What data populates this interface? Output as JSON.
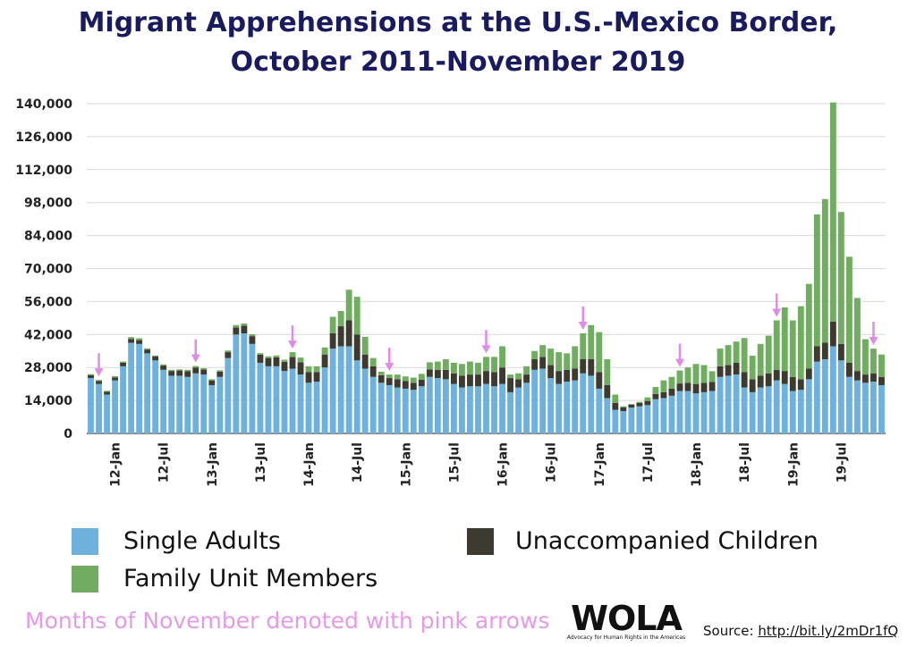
{
  "chart_data": {
    "type": "bar",
    "stacked": true,
    "title_line1": "Migrant Apprehensions at the U.S.-Mexico Border,",
    "title_line2": "October 2011-November 2019",
    "xlabel": "",
    "ylabel": "",
    "ylim": [
      0,
      140000
    ],
    "yticks": [
      0,
      14000,
      28000,
      42000,
      56000,
      70000,
      84000,
      98000,
      112000,
      126000,
      140000
    ],
    "ytick_labels": [
      "0",
      "14,000",
      "28,000",
      "42,000",
      "56,000",
      "70,000",
      "84,000",
      "98,000",
      "112,000",
      "126,000",
      "140,000"
    ],
    "x_tick_labels": [
      {
        "index": 3,
        "label": "12-Jan"
      },
      {
        "index": 9,
        "label": "12-Jul"
      },
      {
        "index": 15,
        "label": "13-Jan"
      },
      {
        "index": 21,
        "label": "13-Jul"
      },
      {
        "index": 27,
        "label": "14-Jan"
      },
      {
        "index": 33,
        "label": "14-Jul"
      },
      {
        "index": 39,
        "label": "15-Jan"
      },
      {
        "index": 45,
        "label": "15-Jul"
      },
      {
        "index": 51,
        "label": "16-Jan"
      },
      {
        "index": 57,
        "label": "16-Jul"
      },
      {
        "index": 63,
        "label": "17-Jan"
      },
      {
        "index": 69,
        "label": "17-Jul"
      },
      {
        "index": 75,
        "label": "18-Jan"
      },
      {
        "index": 81,
        "label": "18-Jul"
      },
      {
        "index": 87,
        "label": "19-Jan"
      },
      {
        "index": 93,
        "label": "19-Jul"
      }
    ],
    "november_arrows": [
      1,
      13,
      25,
      37,
      49,
      61,
      73,
      85,
      97
    ],
    "series": [
      {
        "name": "Single Adults",
        "color": "#6fb1dd",
        "values": [
          23500,
          21000,
          16500,
          22500,
          28500,
          38500,
          38000,
          34000,
          31000,
          27000,
          24500,
          24500,
          24000,
          25500,
          25000,
          20500,
          24000,
          32000,
          42000,
          42500,
          38000,
          30000,
          28500,
          28500,
          26500,
          27500,
          25000,
          21500,
          22000,
          28000,
          36000,
          37000,
          37000,
          31000,
          27500,
          24000,
          21500,
          20500,
          19500,
          19000,
          18500,
          20000,
          24000,
          23500,
          23000,
          21000,
          19500,
          20000,
          20000,
          21000,
          20000,
          21000,
          17500,
          19500,
          21500,
          27000,
          27500,
          23500,
          21000,
          22000,
          22500,
          25500,
          24500,
          19000,
          15000,
          10000,
          9500,
          11000,
          11500,
          12000,
          14500,
          15000,
          16000,
          18000,
          18000,
          17000,
          17500,
          18000,
          24000,
          24500,
          25000,
          19500,
          17500,
          19500,
          20000,
          22500,
          21000,
          18000,
          18500,
          23000,
          30500,
          31500,
          37000,
          31000,
          24000,
          22500,
          21500,
          22000,
          20500
        ],
        "show_legend_as": "Single Adults"
      },
      {
        "name": "Unaccompanied Children",
        "color": "#3d3a30",
        "values": [
          1200,
          1200,
          1200,
          1300,
          1500,
          1600,
          1600,
          1600,
          1700,
          1800,
          2000,
          2200,
          2400,
          2400,
          2100,
          2000,
          2200,
          2500,
          3000,
          3200,
          3300,
          3400,
          3500,
          3800,
          3900,
          5000,
          5200,
          4500,
          4000,
          5500,
          6500,
          8500,
          11000,
          11000,
          6000,
          4500,
          3200,
          3000,
          3500,
          3200,
          3000,
          2800,
          3200,
          3500,
          4000,
          4500,
          5000,
          5000,
          5000,
          5500,
          6000,
          7000,
          6000,
          3500,
          3500,
          4500,
          5000,
          5500,
          5500,
          5000,
          5000,
          6000,
          7000,
          7000,
          5500,
          3000,
          1500,
          1200,
          1400,
          1800,
          2200,
          2500,
          3000,
          3200,
          3500,
          4000,
          4000,
          3900,
          4500,
          4500,
          5000,
          6500,
          5500,
          5000,
          5500,
          4500,
          5500,
          6000,
          4500,
          4500,
          6500,
          7000,
          10500,
          7000,
          6000,
          4000,
          3500,
          3500,
          3500
        ],
        "show_legend_as": "Unaccompanied Children"
      },
      {
        "name": "Family Unit Members",
        "color": "#70ad60",
        "values": [
          500,
          500,
          400,
          500,
          500,
          800,
          800,
          500,
          400,
          500,
          500,
          500,
          600,
          700,
          600,
          500,
          600,
          700,
          1000,
          1000,
          800,
          700,
          700,
          800,
          900,
          2000,
          2000,
          2500,
          2500,
          3000,
          7000,
          6500,
          13000,
          16000,
          7500,
          3500,
          1500,
          1500,
          2000,
          2000,
          2200,
          2500,
          3000,
          3500,
          4500,
          4500,
          5000,
          5500,
          5000,
          6000,
          6500,
          9000,
          1500,
          2500,
          3500,
          3500,
          5000,
          7000,
          8000,
          7000,
          9500,
          11000,
          14500,
          17000,
          11000,
          3500,
          500,
          300,
          500,
          1500,
          3000,
          5000,
          5000,
          5500,
          6500,
          8500,
          7500,
          4500,
          7500,
          8500,
          9000,
          14500,
          10000,
          13500,
          16000,
          21000,
          27000,
          24000,
          31000,
          36000,
          56000,
          61000,
          93000,
          56000,
          45000,
          31000,
          15000,
          10500,
          9500
        ],
        "show_legend_as": "Family Unit Members"
      }
    ]
  },
  "legend": {
    "single_adults": "Single Adults",
    "unaccompanied_children": "Unaccompanied Children",
    "family_unit_members": "Family Unit Members"
  },
  "colors": {
    "single_adults": "#6fb1dd",
    "unaccompanied_children": "#3d3a30",
    "family_unit_members": "#70ad60",
    "arrow": "#e08be6",
    "title": "#1a1a5e"
  },
  "footer": {
    "note": "Months of November denoted with pink arrows",
    "logo_text": "WOLA",
    "logo_subtext": "Advocacy for Human Rights in the Americas",
    "source_label": "Source: ",
    "source_link": "http://bit.ly/2mDr1fQ"
  }
}
